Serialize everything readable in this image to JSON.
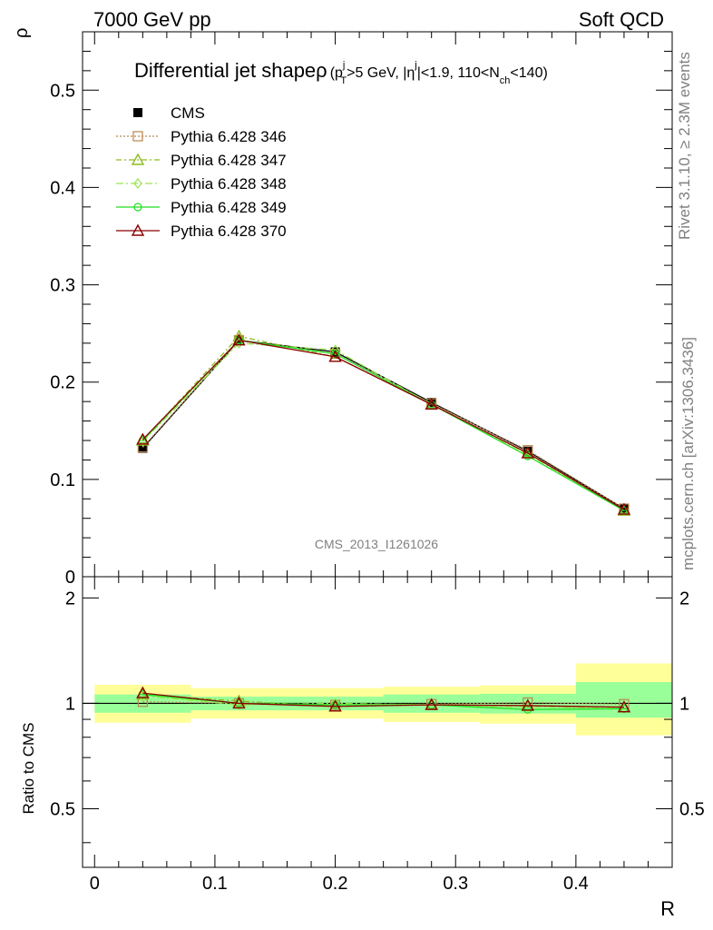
{
  "header": {
    "left": "7000 GeV pp",
    "right": "Soft QCD"
  },
  "side": {
    "rivet": "Rivet 3.1.10, ≥ 2.3M events",
    "mcplots": "mcplots.cern.ch [arXiv:1306.3436]"
  },
  "watermark": "CMS_2013_I1261026",
  "colors": {
    "cms": "#000000",
    "p346": "#b8864b",
    "p347": "#8fbc1f",
    "p348": "#99e64d",
    "p349": "#22dd22",
    "p370": "#8b0000",
    "band_inner": "#99ff99",
    "band_outer": "#ffff99"
  },
  "chart_data": [
    {
      "type": "line",
      "title": "Differential jet shape ρ (p_T^j>5 GeV, |η^j|<1.9, 110<N_ch<140)",
      "title_parts": {
        "main": "Differential jet shape",
        "rho": "ρ",
        "open": "(p",
        "sub_T": "T",
        "sup_j1": "j",
        "cut1": ">5 GeV, |η",
        "sup_j2": "j",
        "cut2": "|<1.9, 110<N",
        "sub_ch": "ch",
        "cut3": "<140)"
      },
      "ylabel": "ρ",
      "xlim": [
        -0.01,
        0.48
      ],
      "ylim": [
        0,
        0.56
      ],
      "yticks": [
        "0",
        "0.1",
        "0.2",
        "0.3",
        "0.4",
        "0.5"
      ],
      "legend_position": "top-left",
      "x": [
        0.04,
        0.12,
        0.2,
        0.28,
        0.36,
        0.44
      ],
      "series": [
        {
          "name": "CMS",
          "values": [
            0.132,
            0.243,
            0.231,
            0.179,
            0.129,
            0.07
          ]
        },
        {
          "name": "Pythia 6.428 346",
          "values": [
            0.133,
            0.243,
            0.229,
            0.178,
            0.13,
            0.07
          ]
        },
        {
          "name": "Pythia 6.428 347",
          "values": [
            0.14,
            0.247,
            0.226,
            0.177,
            0.127,
            0.068
          ]
        },
        {
          "name": "Pythia 6.428 348",
          "values": [
            0.139,
            0.24,
            0.233,
            0.177,
            0.126,
            0.068
          ]
        },
        {
          "name": "Pythia 6.428 349",
          "values": [
            0.14,
            0.243,
            0.229,
            0.177,
            0.124,
            0.068
          ]
        },
        {
          "name": "Pythia 6.428 370",
          "values": [
            0.141,
            0.243,
            0.226,
            0.177,
            0.127,
            0.069
          ]
        }
      ]
    },
    {
      "type": "line",
      "xlabel": "R",
      "ylabel": "Ratio to CMS",
      "xlim": [
        -0.01,
        0.48
      ],
      "ylim": [
        0.34,
        2.3
      ],
      "yticks": [
        "0.5",
        "1",
        "2"
      ],
      "xticks": [
        "0",
        "0.1",
        "0.2",
        "0.3",
        "0.4"
      ],
      "bins": [
        0,
        0.08,
        0.16,
        0.24,
        0.32,
        0.4,
        0.48
      ],
      "band_inner": [
        [
          0.94,
          1.06
        ],
        [
          0.955,
          1.045
        ],
        [
          0.955,
          1.045
        ],
        [
          0.94,
          1.06
        ],
        [
          0.935,
          1.065
        ],
        [
          0.91,
          1.15
        ]
      ],
      "band_outer": [
        [
          0.88,
          1.13
        ],
        [
          0.905,
          1.105
        ],
        [
          0.905,
          1.105
        ],
        [
          0.885,
          1.115
        ],
        [
          0.875,
          1.125
        ],
        [
          0.81,
          1.3
        ]
      ],
      "x": [
        0.04,
        0.12,
        0.2,
        0.28,
        0.36,
        0.44
      ],
      "series": [
        {
          "name": "Pythia 6.428 346",
          "values": [
            1.01,
            1.0,
            0.99,
            0.995,
            1.005,
            0.995
          ]
        },
        {
          "name": "Pythia 6.428 347",
          "values": [
            1.06,
            1.015,
            0.98,
            0.99,
            0.985,
            0.975
          ]
        },
        {
          "name": "Pythia 6.428 348",
          "values": [
            1.05,
            0.99,
            1.0,
            0.99,
            0.975,
            0.97
          ]
        },
        {
          "name": "Pythia 6.428 349",
          "values": [
            1.06,
            1.0,
            0.99,
            0.99,
            0.96,
            0.965
          ]
        },
        {
          "name": "Pythia 6.428 370",
          "values": [
            1.07,
            1.0,
            0.98,
            0.99,
            0.985,
            0.975
          ]
        }
      ]
    }
  ]
}
